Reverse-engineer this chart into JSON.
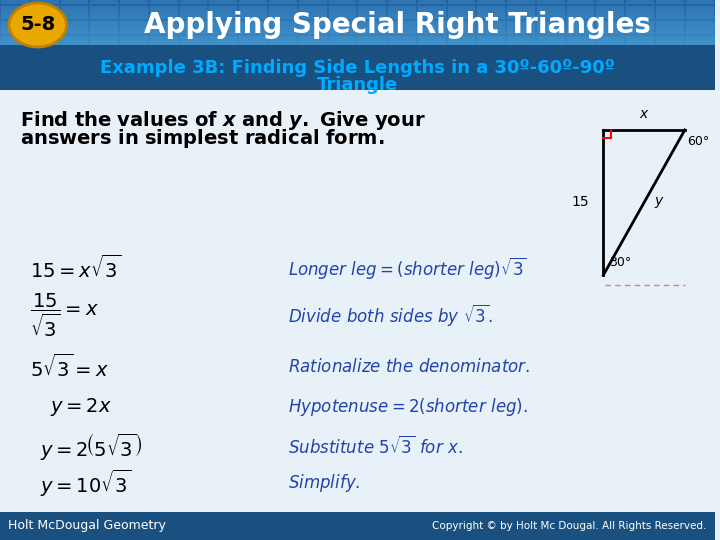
{
  "title_badge": "5-8",
  "title_text": "Applying Special Right Triangles",
  "subtitle_line1": "Example 3B: Finding Side Lengths in a 30º-60º-90º",
  "subtitle_line2": "Triangle",
  "header_bg": "#2060a0",
  "header_bg2": "#4090c8",
  "badge_bg": "#e8a800",
  "subtitle_bg": "#1a5080",
  "body_bg": "#e8f0f8",
  "footer_bg": "#1a5080",
  "footer_left": "Holt McDougal Geometry",
  "footer_right": "Copyright © by Holt Mc Dougal. All Rights Reserved.",
  "body_text_color": "#000000",
  "blue_text_color": "#2244aa",
  "subtitle_text_color": "#00aaff",
  "header_text_color": "#ffffff"
}
